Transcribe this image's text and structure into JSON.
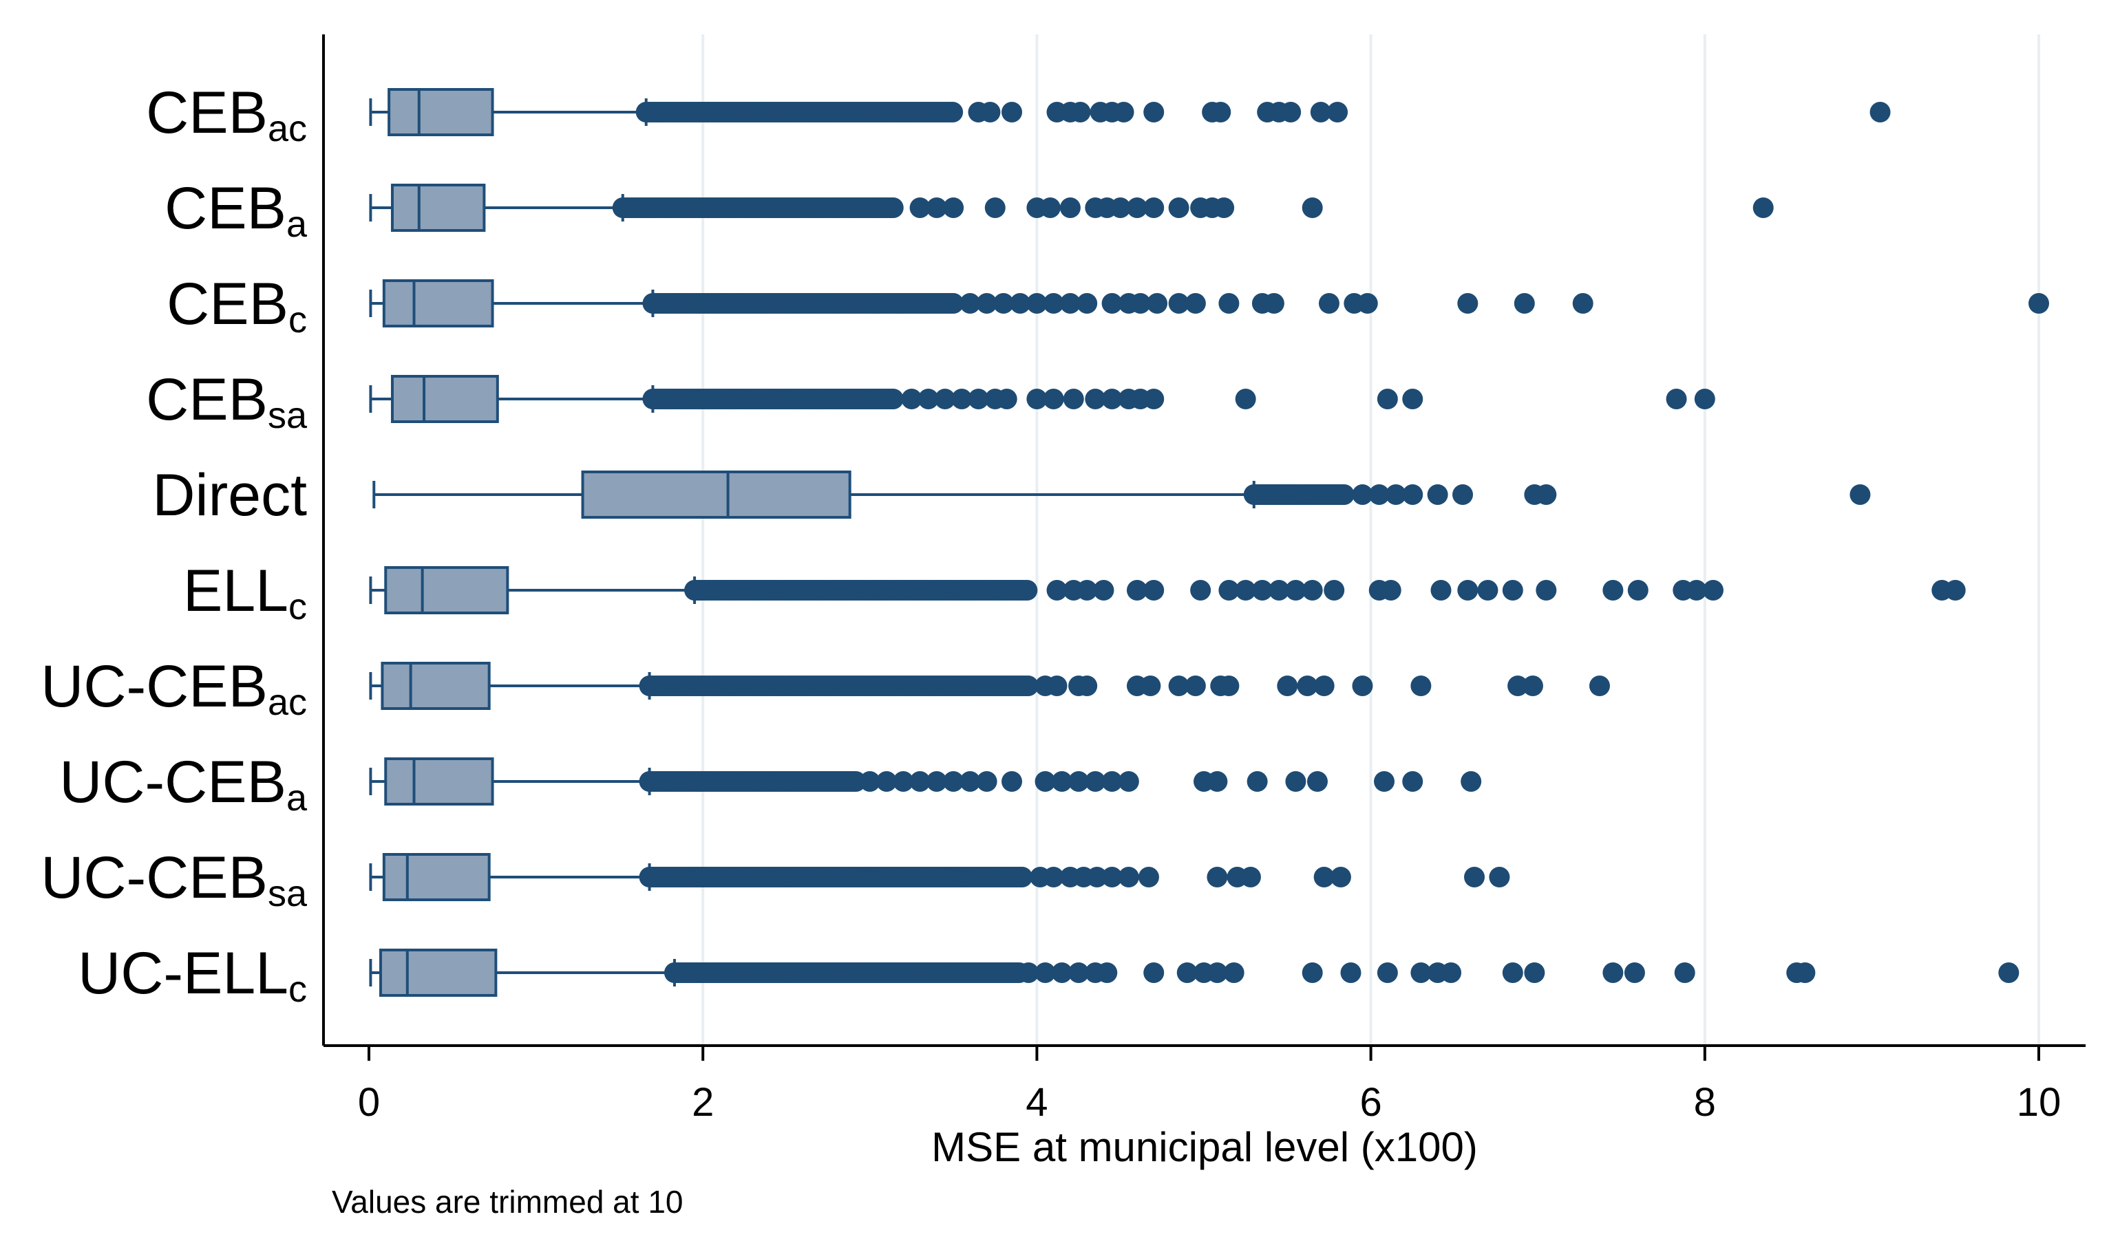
{
  "chart_data": {
    "type": "boxplot",
    "orientation": "horizontal",
    "xlabel": "MSE at municipal level (x100)",
    "xlim": [
      0,
      10
    ],
    "xticks": [
      "0",
      "2",
      "4",
      "6",
      "8",
      "10"
    ],
    "note": "Values are trimmed at 10",
    "grid": "vertical",
    "colors": {
      "box_fill": "#8da1b9",
      "box_stroke": "#1f4e79",
      "outlier": "#1e4b73",
      "grid": "#e8eff2",
      "axis": "#000000"
    },
    "series": [
      {
        "name": "CEBac",
        "base": "CEB",
        "sub": "ac",
        "whisker_low": 0.01,
        "q1": 0.12,
        "median": 0.3,
        "q3": 0.74,
        "whisker_high": 1.66,
        "outlier_dense": [
          1.66,
          3.5
        ],
        "outliers": [
          3.65,
          3.72,
          3.85,
          4.12,
          4.2,
          4.26,
          4.38,
          4.45,
          4.52,
          4.7,
          5.05,
          5.1,
          5.38,
          5.45,
          5.52,
          5.7,
          5.8,
          9.05
        ]
      },
      {
        "name": "CEBa",
        "base": "CEB",
        "sub": "a",
        "whisker_low": 0.01,
        "q1": 0.14,
        "median": 0.3,
        "q3": 0.69,
        "whisker_high": 1.52,
        "outlier_dense": [
          1.52,
          3.15
        ],
        "outliers": [
          3.3,
          3.4,
          3.5,
          3.75,
          4.0,
          4.08,
          4.2,
          4.35,
          4.42,
          4.5,
          4.6,
          4.7,
          4.85,
          4.98,
          5.05,
          5.12,
          5.65,
          8.35
        ]
      },
      {
        "name": "CEBc",
        "base": "CEB",
        "sub": "c",
        "whisker_low": 0.01,
        "q1": 0.09,
        "median": 0.27,
        "q3": 0.74,
        "whisker_high": 1.7,
        "outlier_dense": [
          1.7,
          3.5
        ],
        "outliers": [
          3.6,
          3.7,
          3.8,
          3.9,
          4.0,
          4.1,
          4.2,
          4.3,
          4.45,
          4.55,
          4.62,
          4.72,
          4.85,
          4.95,
          5.15,
          5.35,
          5.42,
          5.75,
          5.9,
          5.98,
          6.58,
          6.92,
          7.27,
          10.0
        ]
      },
      {
        "name": "CEBsa",
        "base": "CEB",
        "sub": "sa",
        "whisker_low": 0.01,
        "q1": 0.14,
        "median": 0.33,
        "q3": 0.77,
        "whisker_high": 1.7,
        "outlier_dense": [
          1.7,
          3.15
        ],
        "outliers": [
          3.25,
          3.35,
          3.45,
          3.55,
          3.65,
          3.75,
          3.82,
          4.0,
          4.1,
          4.22,
          4.35,
          4.45,
          4.55,
          4.62,
          4.7,
          5.25,
          6.1,
          6.25,
          7.83,
          8.0
        ]
      },
      {
        "name": "Direct",
        "base": "Direct",
        "sub": "",
        "whisker_low": 0.03,
        "q1": 1.28,
        "median": 2.15,
        "q3": 2.88,
        "whisker_high": 5.3,
        "outlier_dense": [
          5.3,
          5.85
        ],
        "outliers": [
          5.95,
          6.05,
          6.15,
          6.25,
          6.4,
          6.55,
          6.98,
          7.05,
          8.93
        ]
      },
      {
        "name": "ELLc",
        "base": "ELL",
        "sub": "c",
        "whisker_low": 0.01,
        "q1": 0.1,
        "median": 0.32,
        "q3": 0.83,
        "whisker_high": 1.95,
        "outlier_dense": [
          1.95,
          3.95
        ],
        "outliers": [
          4.12,
          4.22,
          4.3,
          4.4,
          4.6,
          4.7,
          4.98,
          5.15,
          5.25,
          5.35,
          5.45,
          5.55,
          5.65,
          5.78,
          6.05,
          6.12,
          6.42,
          6.58,
          6.7,
          6.85,
          7.05,
          7.45,
          7.6,
          7.87,
          7.95,
          8.05,
          9.42,
          9.5
        ]
      },
      {
        "name": "UC-CEBac",
        "base": "UC-CEB",
        "sub": "ac",
        "whisker_low": 0.01,
        "q1": 0.08,
        "median": 0.25,
        "q3": 0.72,
        "whisker_high": 1.68,
        "outlier_dense": [
          1.68,
          3.95
        ],
        "outliers": [
          4.05,
          4.12,
          4.25,
          4.3,
          4.6,
          4.68,
          4.85,
          4.95,
          5.1,
          5.15,
          5.5,
          5.62,
          5.72,
          5.95,
          6.3,
          6.88,
          6.97,
          7.37
        ]
      },
      {
        "name": "UC-CEBa",
        "base": "UC-CEB",
        "sub": "a",
        "whisker_low": 0.01,
        "q1": 0.1,
        "median": 0.27,
        "q3": 0.74,
        "whisker_high": 1.68,
        "outlier_dense": [
          1.68,
          2.92
        ],
        "outliers": [
          3.0,
          3.1,
          3.2,
          3.3,
          3.4,
          3.5,
          3.6,
          3.7,
          3.85,
          4.05,
          4.15,
          4.25,
          4.35,
          4.45,
          4.55,
          5.0,
          5.08,
          5.32,
          5.55,
          5.68,
          6.08,
          6.25,
          6.6
        ]
      },
      {
        "name": "UC-CEBsa",
        "base": "UC-CEB",
        "sub": "sa",
        "whisker_low": 0.01,
        "q1": 0.09,
        "median": 0.23,
        "q3": 0.72,
        "whisker_high": 1.68,
        "outlier_dense": [
          1.68,
          3.92
        ],
        "outliers": [
          4.02,
          4.1,
          4.2,
          4.28,
          4.36,
          4.45,
          4.55,
          4.67,
          5.08,
          5.2,
          5.28,
          5.72,
          5.82,
          6.62,
          6.77
        ]
      },
      {
        "name": "UC-ELLc",
        "base": "UC-ELL",
        "sub": "c",
        "whisker_low": 0.01,
        "q1": 0.07,
        "median": 0.23,
        "q3": 0.76,
        "whisker_high": 1.83,
        "outlier_dense": [
          1.83,
          3.9
        ],
        "outliers": [
          3.95,
          4.05,
          4.15,
          4.25,
          4.35,
          4.42,
          4.7,
          4.9,
          5.0,
          5.08,
          5.18,
          5.65,
          5.88,
          6.1,
          6.3,
          6.4,
          6.48,
          6.85,
          6.98,
          7.45,
          7.58,
          7.88,
          8.55,
          8.6,
          9.82
        ]
      }
    ]
  }
}
